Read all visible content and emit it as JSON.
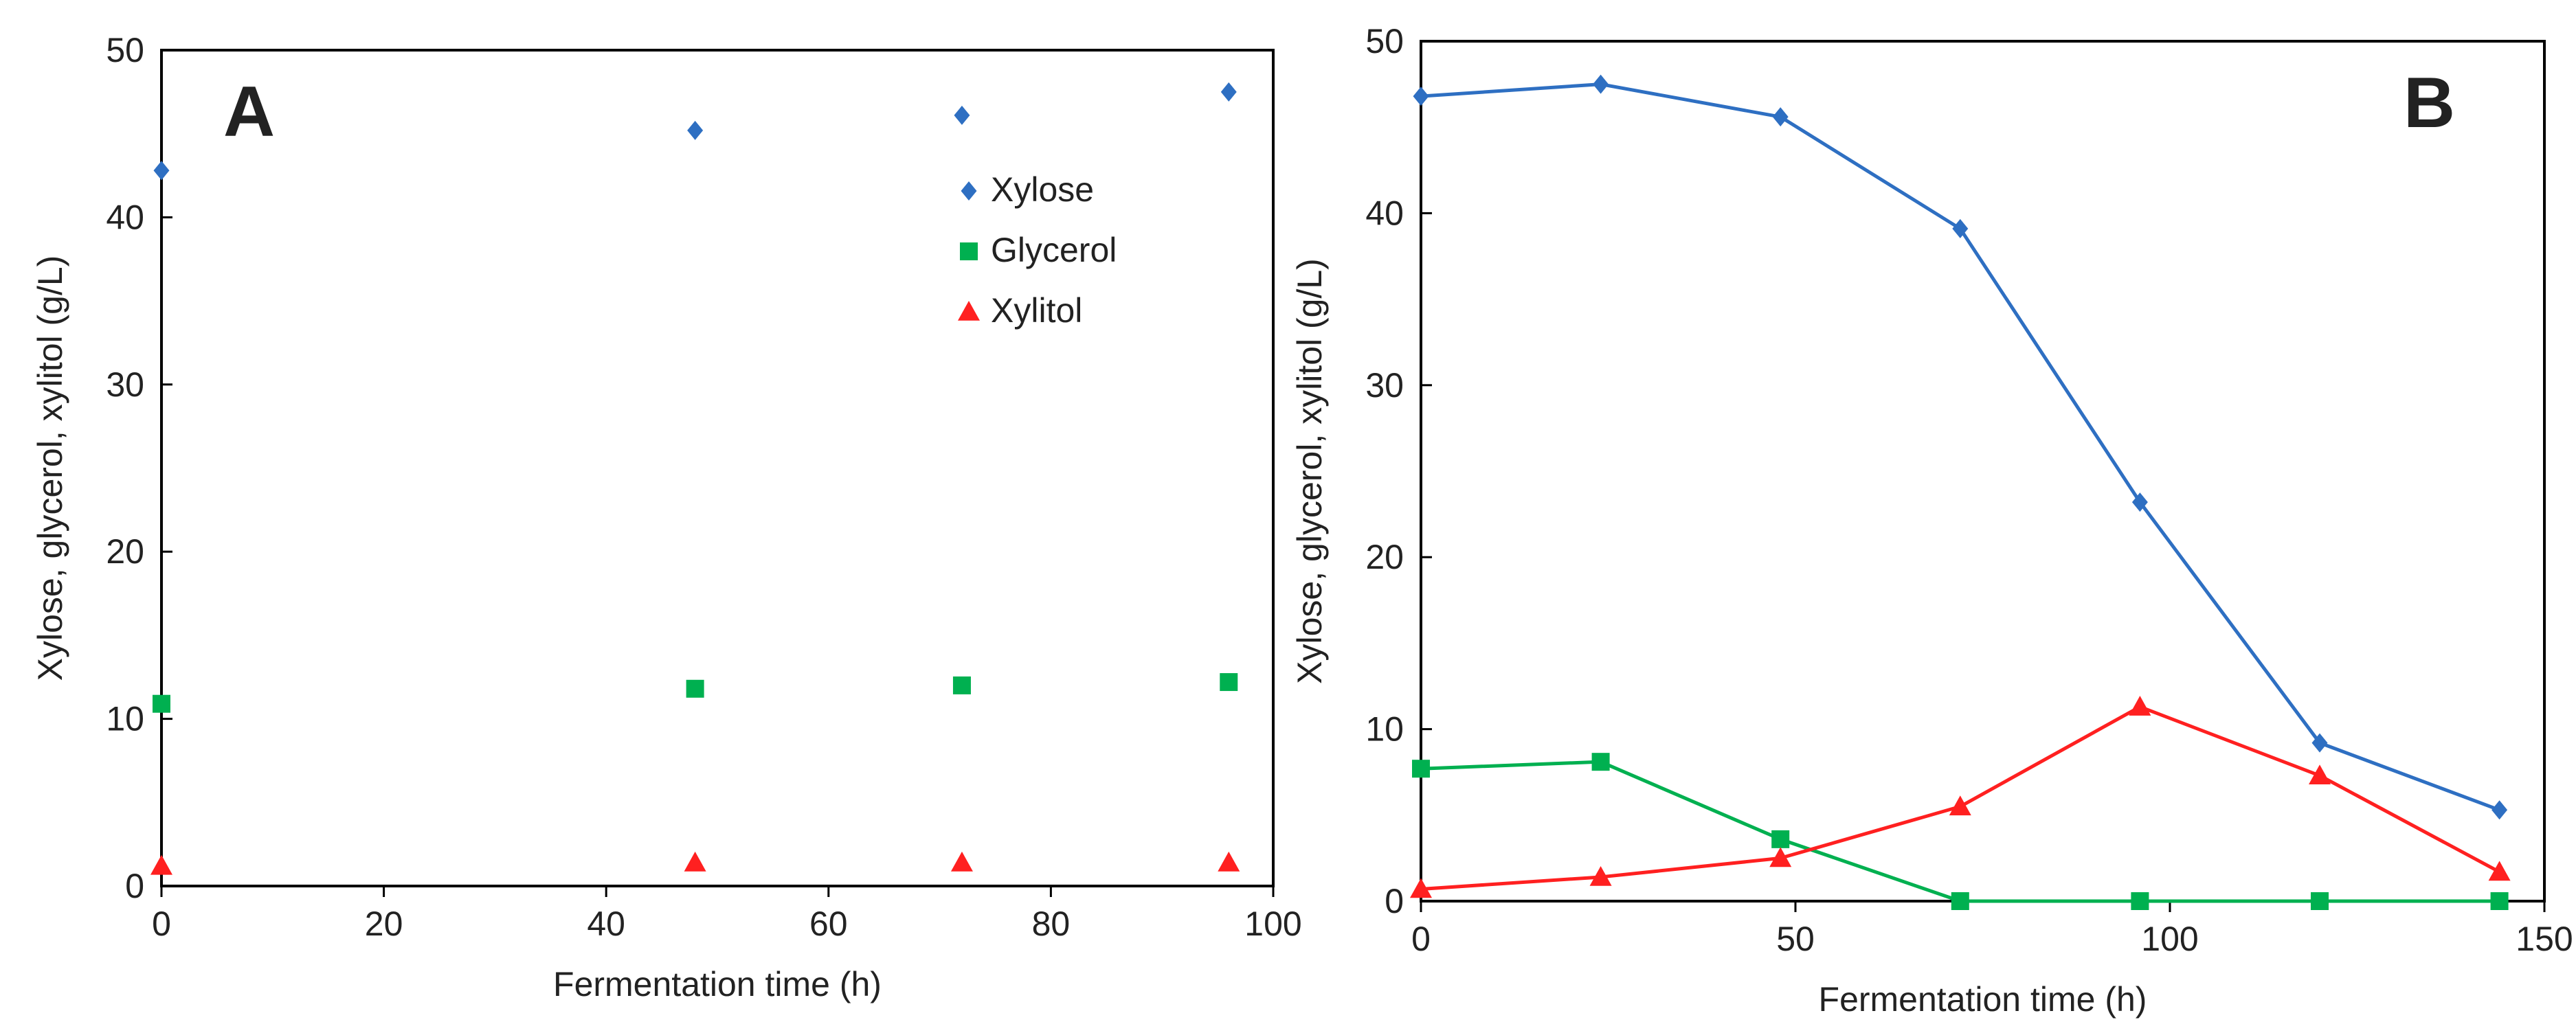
{
  "chart_data": [
    {
      "type": "scatter",
      "panel_label": "A",
      "xlabel": "Fermentation time (h)",
      "ylabel": "Xylose, glycerol, xylitol (g/L)",
      "xlim": [
        0,
        100
      ],
      "ylim": [
        0,
        50
      ],
      "xticks": [
        0,
        20,
        40,
        60,
        80,
        100
      ],
      "yticks": [
        0,
        10,
        20,
        30,
        40,
        50
      ],
      "grid": false,
      "legend": "top-right",
      "lines": false,
      "series": [
        {
          "name": "Xylose",
          "marker": "diamond",
          "color": "#2E6FC2",
          "x": [
            0,
            48,
            72,
            96
          ],
          "y": [
            42.8,
            45.2,
            46.1,
            47.5
          ]
        },
        {
          "name": "Glycerol",
          "marker": "square",
          "color": "#00B050",
          "x": [
            0,
            48,
            72,
            96
          ],
          "y": [
            10.9,
            11.8,
            12.0,
            12.2
          ]
        },
        {
          "name": "Xylitol",
          "marker": "triangle",
          "color": "#FF2020",
          "x": [
            0,
            48,
            72,
            96
          ],
          "y": [
            1.2,
            1.4,
            1.4,
            1.4
          ]
        }
      ]
    },
    {
      "type": "line",
      "panel_label": "B",
      "xlabel": "Fermentation time (h)",
      "ylabel": "Xylose, glycerol, xylitol (g/L)",
      "xlim": [
        0,
        150
      ],
      "ylim": [
        0,
        50
      ],
      "xticks": [
        0,
        50,
        100,
        150
      ],
      "yticks": [
        0,
        10,
        20,
        30,
        40,
        50
      ],
      "grid": false,
      "lines": true,
      "series": [
        {
          "marker": "diamond",
          "color": "#2E6FC2",
          "x": [
            0,
            24,
            48,
            72,
            96,
            120,
            144
          ],
          "y": [
            46.8,
            47.5,
            45.6,
            39.1,
            23.2,
            9.2,
            5.3
          ]
        },
        {
          "marker": "square",
          "color": "#00B050",
          "x": [
            0,
            24,
            48,
            72,
            96,
            120,
            144
          ],
          "y": [
            7.7,
            8.1,
            3.6,
            0.0,
            0.0,
            0.0,
            0.0
          ]
        },
        {
          "marker": "triangle",
          "color": "#FF2020",
          "x": [
            0,
            24,
            48,
            72,
            96,
            120,
            144
          ],
          "y": [
            0.7,
            1.4,
            2.5,
            5.5,
            11.3,
            7.3,
            1.7
          ]
        }
      ]
    }
  ]
}
